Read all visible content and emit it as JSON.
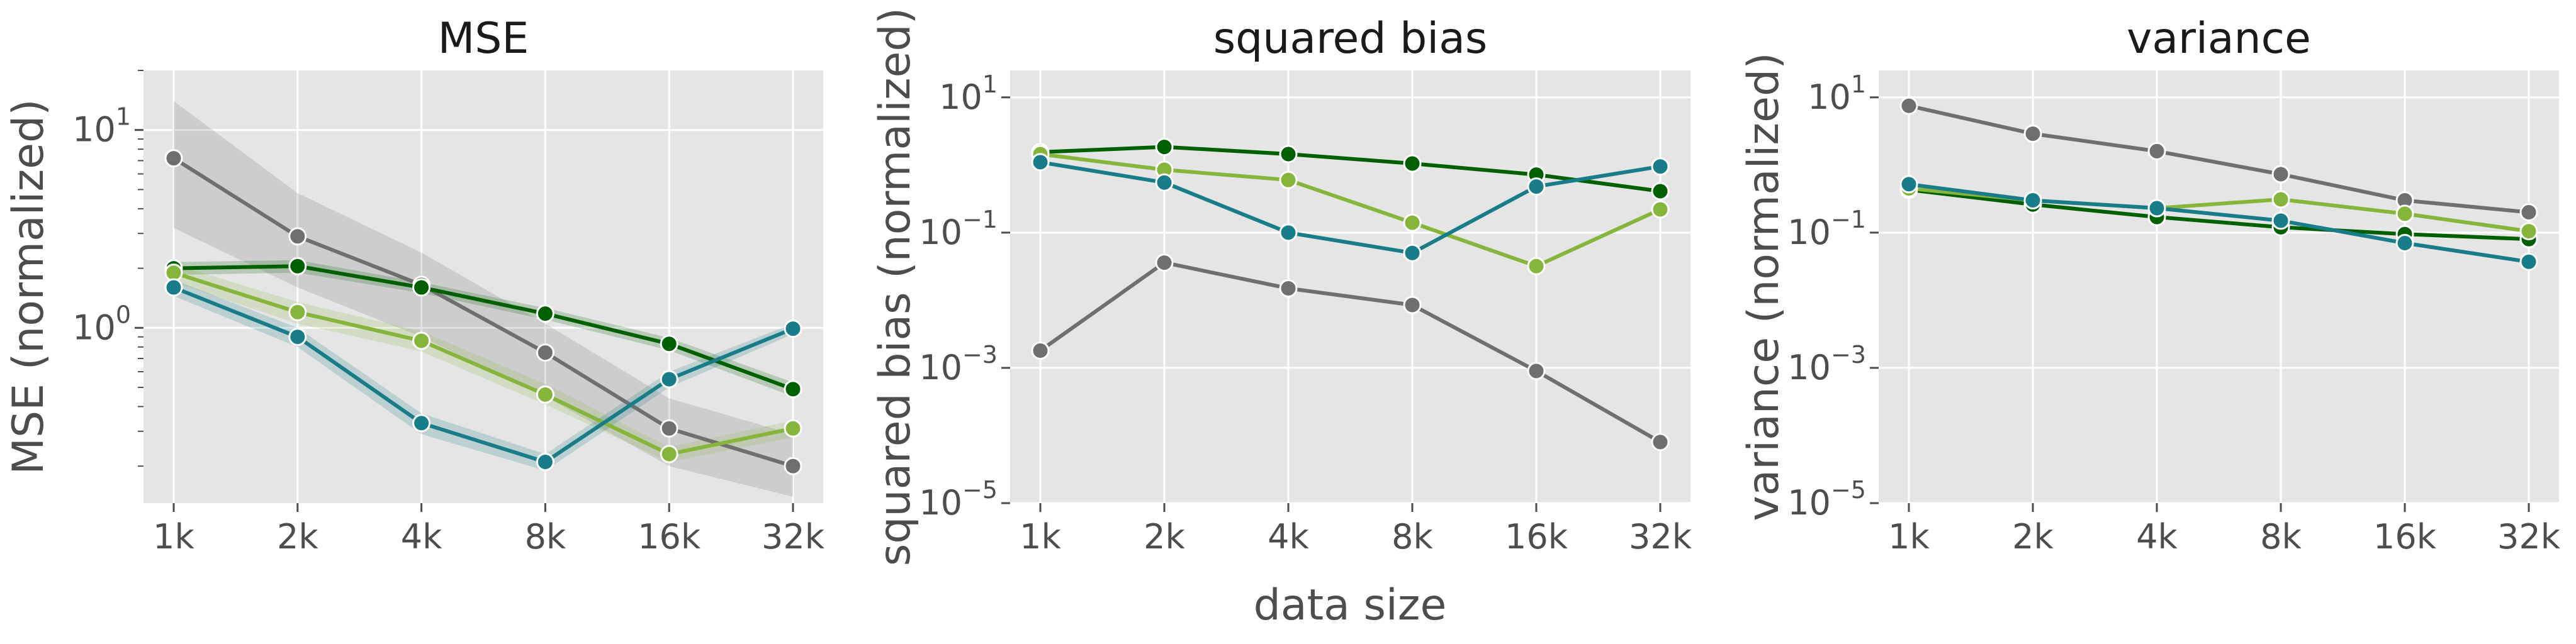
{
  "figure": {
    "xlabel": "data size"
  },
  "colors": {
    "background": "#e5e5e5",
    "grid": "#ffffff",
    "grey": "#6f6f6f",
    "dark_green": "#005f00",
    "light_green": "#86b53c",
    "teal": "#187c89"
  },
  "chart_data": [
    {
      "type": "line",
      "title": "MSE",
      "ylabel": "MSE (normalized)",
      "yscale": "log",
      "ylim": [
        0.13,
        20
      ],
      "yticks": [
        {
          "value": 1,
          "base": "10",
          "exp": "0"
        },
        {
          "value": 10,
          "base": "10",
          "exp": "1"
        }
      ],
      "minor_ticks": true,
      "categories": [
        "1k",
        "2k",
        "4k",
        "8k",
        "16k",
        "32k"
      ],
      "grid": true,
      "series": [
        {
          "color": "grey",
          "values": [
            7.2,
            2.9,
            1.65,
            0.75,
            0.31,
            0.2
          ],
          "band_low": [
            3.2,
            1.6,
            0.9,
            0.45,
            0.2,
            0.14
          ],
          "band_high": [
            14,
            4.8,
            2.4,
            1.05,
            0.44,
            0.29
          ]
        },
        {
          "color": "dark_green",
          "values": [
            2.0,
            2.05,
            1.6,
            1.18,
            0.83,
            0.49
          ],
          "band_low": [
            1.85,
            1.9,
            1.5,
            1.1,
            0.77,
            0.45
          ],
          "band_high": [
            2.15,
            2.2,
            1.7,
            1.26,
            0.89,
            0.53
          ]
        },
        {
          "color": "light_green",
          "values": [
            1.9,
            1.2,
            0.86,
            0.46,
            0.23,
            0.31
          ],
          "band_low": [
            1.7,
            1.05,
            0.76,
            0.41,
            0.21,
            0.28
          ],
          "band_high": [
            2.1,
            1.35,
            0.96,
            0.52,
            0.25,
            0.34
          ]
        },
        {
          "color": "teal",
          "values": [
            1.6,
            0.9,
            0.33,
            0.21,
            0.55,
            0.99
          ],
          "band_low": [
            1.45,
            0.8,
            0.29,
            0.19,
            0.5,
            0.93
          ],
          "band_high": [
            1.75,
            1.0,
            0.37,
            0.23,
            0.6,
            1.05
          ]
        }
      ]
    },
    {
      "type": "line",
      "title": "squared bias",
      "ylabel": "squared bias (normalized)",
      "yscale": "log",
      "ylim": [
        1e-05,
        25
      ],
      "yticks": [
        {
          "value": 1e-05,
          "base": "10",
          "exp": "−5"
        },
        {
          "value": 0.001,
          "base": "10",
          "exp": "−3"
        },
        {
          "value": 0.1,
          "base": "10",
          "exp": "−1"
        },
        {
          "value": 10,
          "base": "10",
          "exp": "1"
        }
      ],
      "categories": [
        "1k",
        "2k",
        "4k",
        "8k",
        "16k",
        "32k"
      ],
      "grid": true,
      "series": [
        {
          "color": "grey",
          "values": [
            0.0018,
            0.036,
            0.015,
            0.0085,
            0.0009,
            8e-05
          ]
        },
        {
          "color": "dark_green",
          "values": [
            1.55,
            1.85,
            1.45,
            1.05,
            0.72,
            0.41
          ]
        },
        {
          "color": "light_green",
          "values": [
            1.45,
            0.85,
            0.6,
            0.14,
            0.032,
            0.22
          ]
        },
        {
          "color": "teal",
          "values": [
            1.1,
            0.55,
            0.1,
            0.05,
            0.48,
            0.95
          ]
        }
      ]
    },
    {
      "type": "line",
      "title": "variance",
      "ylabel": "variance (normalized)",
      "yscale": "log",
      "ylim": [
        1e-05,
        25
      ],
      "yticks": [
        {
          "value": 1e-05,
          "base": "10",
          "exp": "−5"
        },
        {
          "value": 0.001,
          "base": "10",
          "exp": "−3"
        },
        {
          "value": 0.1,
          "base": "10",
          "exp": "−1"
        },
        {
          "value": 10,
          "base": "10",
          "exp": "1"
        }
      ],
      "categories": [
        "1k",
        "2k",
        "4k",
        "8k",
        "16k",
        "32k"
      ],
      "grid": true,
      "series": [
        {
          "color": "grey",
          "values": [
            7.5,
            2.9,
            1.6,
            0.73,
            0.3,
            0.2
          ]
        },
        {
          "color": "dark_green",
          "values": [
            0.43,
            0.26,
            0.17,
            0.12,
            0.095,
            0.08
          ]
        },
        {
          "color": "light_green",
          "values": [
            0.45,
            0.3,
            0.23,
            0.31,
            0.19,
            0.105
          ]
        },
        {
          "color": "teal",
          "values": [
            0.52,
            0.3,
            0.23,
            0.15,
            0.07,
            0.037
          ]
        }
      ]
    }
  ]
}
